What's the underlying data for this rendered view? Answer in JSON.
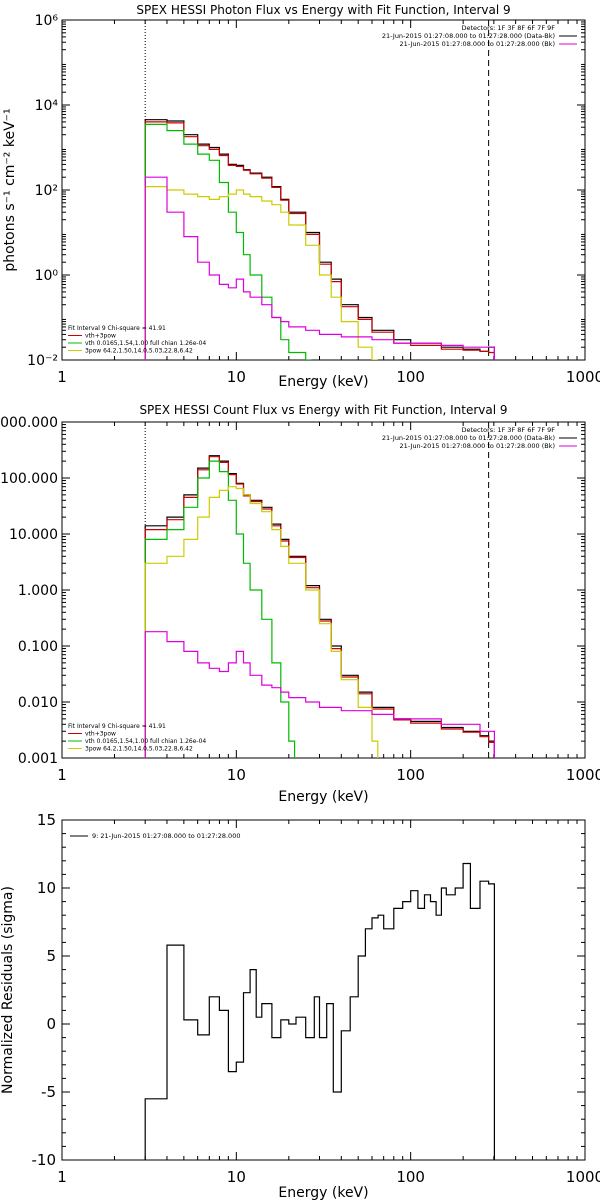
{
  "chart_data": [
    {
      "type": "line",
      "title": "SPEX HESSI Photon Flux vs Energy with Fit Function, Interval 9",
      "xlabel": "Energy (keV)",
      "ylabel": "photons s⁻¹ cm⁻² keV⁻¹",
      "x_scale": "log",
      "y_scale": "log",
      "xlim": [
        1,
        1000
      ],
      "ylim": [
        0.01,
        1000000
      ],
      "x_ticks": [
        "1",
        "10",
        "100",
        "1000"
      ],
      "y_ticks": [
        "10⁻²",
        "10⁰",
        "10²",
        "10⁴",
        "10⁶"
      ],
      "legend_top_right": [
        "Detectors: 1F 3F 8F 6F 7F 9F",
        "21-Jun-2015 01:27:08.000 to 01:27:28.000 (Data-Bk)",
        "21-Jun-2015 01:27:08.000 to 01:27:28.000 (Bk)"
      ],
      "legend_bottom_left": [
        "Fit Interval 9   Chi-square = 41.91",
        "vth+3pow",
        "vth 0.0165,1.54,1.00  full chian 1.26e-04",
        "3pow 64.2,1.50,14.0,5.03,22.8,6.42"
      ],
      "colors": {
        "data": "#000000",
        "total": "#cc0000",
        "vth": "#00bb00",
        "pow": "#cccc00",
        "bk": "#dd00dd"
      },
      "vlines_x": {
        "dotted": 3,
        "dashed": 280
      },
      "series": [
        {
          "name": "Data-Bk",
          "color": "#000000",
          "x": [
            3,
            4,
            5,
            6,
            7,
            8,
            9,
            10,
            11,
            12,
            14,
            16,
            18,
            20,
            25,
            30,
            35,
            40,
            50,
            60,
            80,
            100,
            150,
            200,
            250,
            280
          ],
          "values": [
            4500,
            4200,
            2000,
            1200,
            1000,
            700,
            400,
            380,
            300,
            250,
            200,
            120,
            60,
            30,
            10,
            2,
            0.8,
            0.2,
            0.1,
            0.05,
            0.03,
            0.025,
            0.02,
            0.018,
            0.016,
            0.02
          ]
        },
        {
          "name": "vth+3pow",
          "color": "#cc0000",
          "x": [
            3,
            4,
            5,
            6,
            7,
            8,
            9,
            10,
            11,
            12,
            14,
            16,
            18,
            20,
            25,
            30,
            35,
            40,
            50,
            60,
            80,
            100,
            150,
            200,
            250,
            280
          ],
          "values": [
            4000,
            3800,
            1800,
            1100,
            900,
            650,
            380,
            360,
            290,
            240,
            190,
            115,
            58,
            28,
            9,
            1.8,
            0.7,
            0.18,
            0.09,
            0.045,
            0.025,
            0.022,
            0.018,
            0.017,
            0.016,
            0.015
          ]
        },
        {
          "name": "vth",
          "color": "#00bb00",
          "x": [
            3,
            4,
            5,
            6,
            7,
            8,
            9,
            10,
            11,
            12,
            14,
            16,
            18,
            20,
            25
          ],
          "values": [
            3500,
            2500,
            1200,
            700,
            500,
            150,
            30,
            10,
            3,
            1,
            0.3,
            0.1,
            0.03,
            0.015,
            0.01
          ]
        },
        {
          "name": "3pow",
          "color": "#cccc00",
          "x": [
            3,
            4,
            5,
            6,
            7,
            8,
            9,
            10,
            11,
            12,
            14,
            16,
            18,
            20,
            25,
            30,
            35,
            40,
            50,
            60
          ],
          "values": [
            120,
            100,
            80,
            70,
            60,
            70,
            80,
            100,
            80,
            70,
            55,
            45,
            30,
            15,
            5,
            1,
            0.3,
            0.08,
            0.02,
            0.01
          ]
        },
        {
          "name": "Bk",
          "color": "#dd00dd",
          "x": [
            3,
            4,
            5,
            6,
            7,
            8,
            9,
            10,
            11,
            12,
            14,
            16,
            18,
            20,
            25,
            30,
            40,
            60,
            80,
            100,
            150,
            200,
            250,
            280
          ],
          "values": [
            200,
            30,
            8,
            2,
            1,
            0.6,
            0.5,
            0.8,
            0.4,
            0.3,
            0.2,
            0.1,
            0.08,
            0.06,
            0.05,
            0.04,
            0.035,
            0.03,
            0.025,
            0.025,
            0.022,
            0.02,
            0.02,
            0.02
          ]
        }
      ]
    },
    {
      "type": "line",
      "title": "SPEX HESSI Count Flux vs Energy with Fit Function, Interval 9",
      "xlabel": "Energy (keV)",
      "ylabel": "",
      "x_scale": "log",
      "y_scale": "log",
      "xlim": [
        1,
        1000
      ],
      "ylim": [
        0.001,
        1000
      ],
      "x_ticks": [
        "1",
        "10",
        "100",
        "1000"
      ],
      "y_ticks": [
        "0.001",
        "0.010",
        "0.100",
        "1.000",
        "10.000",
        "100.000",
        "1000.000"
      ],
      "legend_top_right": [
        "Detectors: 1F 3F 8F 6F 7F 9F",
        "21-Jun-2015 01:27:08.000 to 01:27:28.000 (Data-Bk)",
        "21-Jun-2015 01:27:08.000 to 01:27:28.000 (Bk)"
      ],
      "legend_bottom_left": [
        "Fit Interval 9   Chi-square = 41.91",
        "vth+3pow",
        "vth 0.0165,1.54,1.00  full chian 1.26e-04",
        "3pow 64.2,1.50,14.0,5.03,22.8,6.42"
      ],
      "vlines_x": {
        "dotted": 3,
        "dashed": 280
      },
      "series": [
        {
          "name": "Data-Bk",
          "color": "#000000",
          "x": [
            3,
            4,
            5,
            6,
            7,
            8,
            9,
            10,
            11,
            12,
            14,
            16,
            18,
            20,
            25,
            30,
            35,
            40,
            50,
            60,
            80,
            100,
            150,
            200,
            250,
            280
          ],
          "values": [
            14,
            20,
            50,
            150,
            250,
            200,
            120,
            80,
            50,
            40,
            30,
            15,
            8,
            4,
            1.2,
            0.3,
            0.1,
            0.03,
            0.015,
            0.008,
            0.005,
            0.0045,
            0.0035,
            0.003,
            0.0025,
            0.002
          ]
        },
        {
          "name": "vth+3pow",
          "color": "#cc0000",
          "x": [
            3,
            4,
            5,
            6,
            7,
            8,
            9,
            10,
            11,
            12,
            14,
            16,
            18,
            20,
            25,
            30,
            35,
            40,
            50,
            60,
            80,
            100,
            150,
            200,
            250,
            280
          ],
          "values": [
            12,
            18,
            45,
            140,
            240,
            190,
            115,
            78,
            48,
            38,
            28,
            14,
            7.5,
            3.8,
            1.1,
            0.28,
            0.09,
            0.028,
            0.014,
            0.0075,
            0.0048,
            0.0042,
            0.0033,
            0.0029,
            0.0024,
            0.0019
          ]
        },
        {
          "name": "vth",
          "color": "#00bb00",
          "x": [
            3,
            4,
            5,
            6,
            7,
            8,
            9,
            10,
            11,
            12,
            14,
            16,
            18,
            20
          ],
          "values": [
            8,
            12,
            30,
            100,
            200,
            130,
            40,
            10,
            3,
            1,
            0.3,
            0.05,
            0.01,
            0.002
          ]
        },
        {
          "name": "3pow",
          "color": "#cccc00",
          "x": [
            3,
            4,
            5,
            6,
            7,
            8,
            9,
            10,
            11,
            12,
            14,
            16,
            18,
            20,
            25,
            30,
            35,
            40,
            50,
            60
          ],
          "values": [
            3,
            4,
            8,
            20,
            45,
            60,
            70,
            65,
            50,
            35,
            25,
            12,
            6,
            3,
            1,
            0.25,
            0.08,
            0.025,
            0.008,
            0.002
          ]
        },
        {
          "name": "Bk",
          "color": "#dd00dd",
          "x": [
            3,
            4,
            5,
            6,
            7,
            8,
            9,
            10,
            11,
            12,
            14,
            16,
            18,
            20,
            25,
            30,
            40,
            60,
            80,
            100,
            150,
            200,
            250,
            280
          ],
          "values": [
            0.18,
            0.12,
            0.08,
            0.05,
            0.04,
            0.035,
            0.05,
            0.08,
            0.05,
            0.03,
            0.02,
            0.018,
            0.015,
            0.012,
            0.01,
            0.008,
            0.007,
            0.006,
            0.005,
            0.005,
            0.004,
            0.004,
            0.003,
            0.003
          ]
        }
      ]
    },
    {
      "type": "line",
      "title": "",
      "xlabel": "Energy (keV)",
      "ylabel": "Normalized Residuals (sigma)",
      "x_scale": "log",
      "y_scale": "linear",
      "xlim": [
        1,
        1000
      ],
      "ylim": [
        -10,
        15
      ],
      "x_ticks": [
        "1",
        "10",
        "100",
        "1000"
      ],
      "y_ticks": [
        "-10",
        "-5",
        "0",
        "5",
        "10",
        "15"
      ],
      "legend": "9: 21-Jun-2015 01:27:08.000 to 01:27:28.000",
      "series": [
        {
          "name": "9: 21-Jun-2015 01:27:08.000 to 01:27:28.000",
          "color": "#000000",
          "x": [
            3,
            4,
            5,
            6,
            7,
            8,
            9,
            10,
            11,
            12,
            13,
            14,
            16,
            18,
            20,
            22,
            25,
            28,
            30,
            33,
            36,
            40,
            45,
            50,
            55,
            60,
            65,
            70,
            80,
            90,
            100,
            110,
            120,
            130,
            140,
            150,
            160,
            180,
            200,
            220,
            250,
            280
          ],
          "values": [
            -5.5,
            5.8,
            0.3,
            -0.8,
            2.0,
            1.0,
            -3.5,
            -2.8,
            2.3,
            4.0,
            0.5,
            1.5,
            -1.0,
            0.3,
            0.0,
            0.5,
            -1.0,
            2.0,
            -1.0,
            1.5,
            -5.0,
            -0.5,
            2.0,
            5.0,
            7.0,
            7.8,
            8.0,
            7.0,
            8.5,
            9.0,
            9.8,
            8.5,
            9.5,
            9.0,
            8.0,
            10.0,
            9.5,
            10.0,
            11.8,
            8.5,
            10.5,
            10.3
          ]
        }
      ]
    }
  ]
}
